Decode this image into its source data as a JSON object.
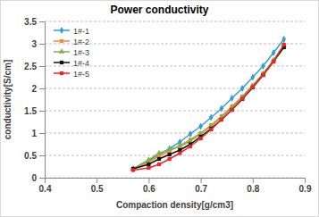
{
  "chart_data": {
    "type": "line",
    "title": "Power conductivity",
    "x_label": "Compaction density[g/cm3]",
    "y_label": "conductivity[S/cm]",
    "x": [
      0.57,
      0.6,
      0.62,
      0.64,
      0.66,
      0.68,
      0.7,
      0.72,
      0.74,
      0.76,
      0.78,
      0.8,
      0.82,
      0.84,
      0.86
    ],
    "series": [
      {
        "name": "1#-1",
        "color": "#2e9fd8",
        "marker": "diamond",
        "values": [
          0.2,
          0.38,
          0.52,
          0.65,
          0.8,
          0.98,
          1.15,
          1.35,
          1.55,
          1.78,
          2.0,
          2.25,
          2.5,
          2.8,
          3.1
        ]
      },
      {
        "name": "1#-2",
        "color": "#f08a3a",
        "marker": "square",
        "values": [
          0.2,
          0.35,
          0.48,
          0.6,
          0.72,
          0.85,
          1.0,
          1.18,
          1.38,
          1.6,
          1.82,
          2.07,
          2.33,
          2.62,
          2.95
        ]
      },
      {
        "name": "1#-3",
        "color": "#7fb24a",
        "marker": "triangle",
        "values": [
          0.2,
          0.4,
          0.55,
          0.63,
          0.7,
          0.82,
          0.98,
          1.15,
          1.35,
          1.57,
          1.8,
          2.05,
          2.33,
          2.63,
          2.97
        ]
      },
      {
        "name": "1#-4",
        "color": "#111111",
        "marker": "square",
        "values": [
          0.2,
          0.3,
          0.42,
          0.52,
          0.62,
          0.75,
          0.92,
          1.1,
          1.3,
          1.52,
          1.76,
          2.02,
          2.3,
          2.6,
          2.92
        ]
      },
      {
        "name": "1#-5",
        "color": "#e8282b",
        "marker": "square",
        "values": [
          0.17,
          0.22,
          0.3,
          0.42,
          0.55,
          0.7,
          0.88,
          1.08,
          1.3,
          1.52,
          1.77,
          2.03,
          2.3,
          2.6,
          2.98
        ]
      }
    ],
    "xlim": [
      0.4,
      0.9
    ],
    "xticks": [
      0.4,
      0.5,
      0.6,
      0.7,
      0.8,
      0.9
    ],
    "ylim": [
      0,
      3.5
    ],
    "yticks": [
      0,
      0.5,
      1,
      1.5,
      2,
      2.5,
      3,
      3.5
    ],
    "grid": true,
    "legend": "upper left"
  }
}
